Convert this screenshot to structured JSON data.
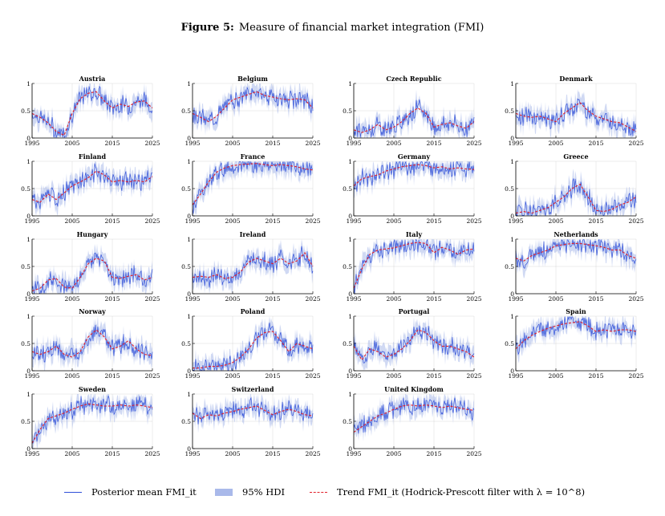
{
  "figure": {
    "label": "Figure 5:",
    "title": "Measure of financial market integration (FMI)"
  },
  "legend": {
    "posterior": "Posterior mean FMI_it",
    "hdi": "95% HDI",
    "trend": "Trend FMI_it (Hodrick-Prescott filter with λ = 10^8)"
  },
  "colors": {
    "posterior": "#2f4fd8",
    "hdi": "#a9b9ea",
    "trend": "#e0202a"
  },
  "chart_data": {
    "type": "line",
    "x_ticks": [
      1995,
      2005,
      2015,
      2025
    ],
    "xlim": [
      1995,
      2025
    ],
    "y_ticks": [
      0,
      0.5,
      1
    ],
    "ylim": [
      0,
      1
    ],
    "grid": true,
    "x": [
      1995,
      1997,
      1999,
      2001,
      2003,
      2005,
      2007,
      2009,
      2011,
      2013,
      2015,
      2017,
      2019,
      2021,
      2023,
      2025
    ],
    "panels": [
      {
        "title": "Austria",
        "trend": [
          0.45,
          0.38,
          0.28,
          0.12,
          0.05,
          0.45,
          0.72,
          0.82,
          0.85,
          0.68,
          0.55,
          0.62,
          0.58,
          0.66,
          0.68,
          0.55
        ]
      },
      {
        "title": "Belgium",
        "trend": [
          0.45,
          0.38,
          0.3,
          0.4,
          0.55,
          0.7,
          0.75,
          0.8,
          0.85,
          0.78,
          0.75,
          0.72,
          0.7,
          0.72,
          0.7,
          0.55
        ]
      },
      {
        "title": "Czech Republic",
        "trend": [
          0.15,
          0.1,
          0.15,
          0.25,
          0.15,
          0.2,
          0.3,
          0.45,
          0.55,
          0.45,
          0.2,
          0.25,
          0.28,
          0.22,
          0.18,
          0.3
        ]
      },
      {
        "title": "Denmark",
        "trend": [
          0.45,
          0.4,
          0.38,
          0.4,
          0.35,
          0.3,
          0.45,
          0.55,
          0.65,
          0.5,
          0.4,
          0.35,
          0.3,
          0.28,
          0.2,
          0.12
        ]
      },
      {
        "title": "Finland",
        "trend": [
          0.3,
          0.25,
          0.4,
          0.3,
          0.42,
          0.55,
          0.62,
          0.7,
          0.82,
          0.75,
          0.62,
          0.65,
          0.62,
          0.65,
          0.62,
          0.72
        ]
      },
      {
        "title": "France",
        "trend": [
          0.2,
          0.4,
          0.62,
          0.8,
          0.88,
          0.92,
          0.94,
          0.95,
          0.96,
          0.94,
          0.92,
          0.94,
          0.92,
          0.9,
          0.86,
          0.84
        ]
      },
      {
        "title": "Germany",
        "trend": [
          0.55,
          0.68,
          0.72,
          0.75,
          0.82,
          0.86,
          0.9,
          0.92,
          0.94,
          0.92,
          0.88,
          0.9,
          0.86,
          0.88,
          0.86,
          0.85
        ]
      },
      {
        "title": "Greece",
        "trend": [
          0.05,
          0.08,
          0.05,
          0.1,
          0.15,
          0.25,
          0.35,
          0.5,
          0.58,
          0.35,
          0.1,
          0.08,
          0.12,
          0.2,
          0.25,
          0.35
        ]
      },
      {
        "title": "Hungary",
        "trend": [
          0.05,
          0.1,
          0.25,
          0.28,
          0.12,
          0.1,
          0.3,
          0.55,
          0.65,
          0.6,
          0.3,
          0.28,
          0.32,
          0.35,
          0.25,
          0.3
        ]
      },
      {
        "title": "Ireland",
        "trend": [
          0.3,
          0.32,
          0.3,
          0.35,
          0.28,
          0.3,
          0.4,
          0.58,
          0.65,
          0.6,
          0.55,
          0.65,
          0.55,
          0.6,
          0.75,
          0.5
        ]
      },
      {
        "title": "Italy",
        "trend": [
          0.1,
          0.45,
          0.72,
          0.8,
          0.82,
          0.84,
          0.88,
          0.92,
          0.94,
          0.92,
          0.75,
          0.85,
          0.8,
          0.72,
          0.8,
          0.82
        ]
      },
      {
        "title": "Netherlands",
        "trend": [
          0.65,
          0.6,
          0.7,
          0.75,
          0.8,
          0.88,
          0.9,
          0.92,
          0.92,
          0.9,
          0.88,
          0.85,
          0.8,
          0.8,
          0.7,
          0.65
        ]
      },
      {
        "title": "Norway",
        "trend": [
          0.35,
          0.3,
          0.35,
          0.45,
          0.3,
          0.25,
          0.35,
          0.62,
          0.75,
          0.62,
          0.4,
          0.45,
          0.55,
          0.4,
          0.3,
          0.28
        ]
      },
      {
        "title": "Poland",
        "trend": [
          0.05,
          0.05,
          0.08,
          0.08,
          0.1,
          0.15,
          0.25,
          0.4,
          0.6,
          0.7,
          0.72,
          0.55,
          0.35,
          0.5,
          0.45,
          0.4
        ]
      },
      {
        "title": "Portugal",
        "trend": [
          0.45,
          0.2,
          0.4,
          0.35,
          0.25,
          0.3,
          0.4,
          0.55,
          0.75,
          0.7,
          0.55,
          0.45,
          0.45,
          0.4,
          0.35,
          0.25
        ]
      },
      {
        "title": "Spain",
        "trend": [
          0.4,
          0.55,
          0.65,
          0.72,
          0.78,
          0.82,
          0.86,
          0.88,
          0.9,
          0.82,
          0.72,
          0.75,
          0.72,
          0.75,
          0.75,
          0.72
        ]
      },
      {
        "title": "Sweden",
        "trend": [
          0.1,
          0.35,
          0.55,
          0.6,
          0.65,
          0.72,
          0.78,
          0.82,
          0.8,
          0.78,
          0.78,
          0.8,
          0.78,
          0.8,
          0.78,
          0.75
        ]
      },
      {
        "title": "Switzerland",
        "trend": [
          0.65,
          0.55,
          0.62,
          0.6,
          0.65,
          0.68,
          0.72,
          0.75,
          0.78,
          0.7,
          0.62,
          0.68,
          0.72,
          0.68,
          0.62,
          0.6
        ]
      },
      {
        "title": "United Kingdom",
        "trend": [
          0.3,
          0.4,
          0.5,
          0.6,
          0.65,
          0.72,
          0.78,
          0.8,
          0.78,
          0.8,
          0.78,
          0.75,
          0.78,
          0.75,
          0.72,
          0.7
        ]
      }
    ]
  }
}
